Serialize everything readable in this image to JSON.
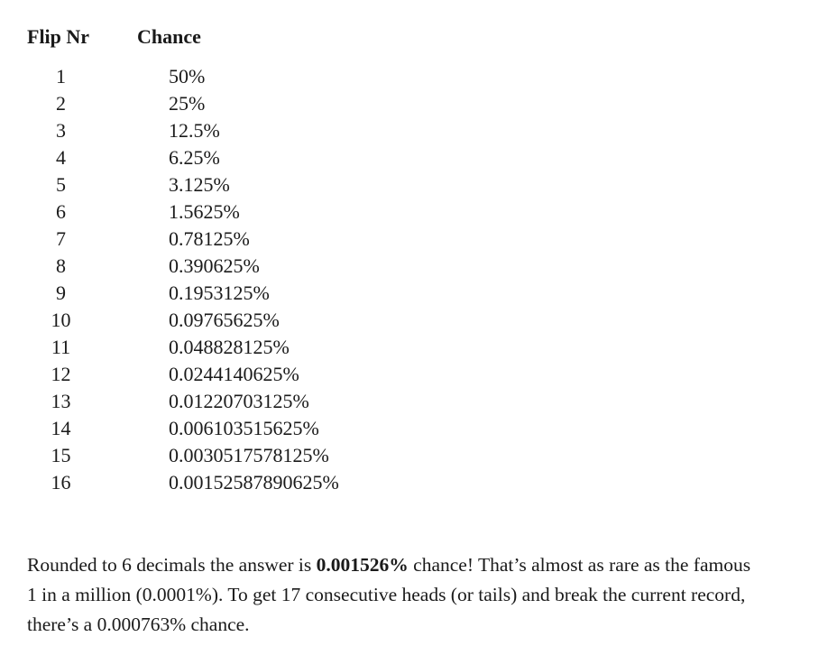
{
  "colors": {
    "text": "#1a1a1a",
    "background": "#ffffff"
  },
  "table": {
    "headers": {
      "flip": "Flip Nr",
      "chance": "Chance"
    },
    "rows": [
      {
        "flip": "1",
        "chance": "50%"
      },
      {
        "flip": "2",
        "chance": "25%"
      },
      {
        "flip": "3",
        "chance": "12.5%"
      },
      {
        "flip": "4",
        "chance": "6.25%"
      },
      {
        "flip": "5",
        "chance": "3.125%"
      },
      {
        "flip": "6",
        "chance": "1.5625%"
      },
      {
        "flip": "7",
        "chance": "0.78125%"
      },
      {
        "flip": "8",
        "chance": "0.390625%"
      },
      {
        "flip": "9",
        "chance": "0.1953125%"
      },
      {
        "flip": "10",
        "chance": "0.09765625%"
      },
      {
        "flip": "11",
        "chance": "0.048828125%"
      },
      {
        "flip": "12",
        "chance": "0.0244140625%"
      },
      {
        "flip": "13",
        "chance": "0.01220703125%"
      },
      {
        "flip": "14",
        "chance": "0.006103515625%"
      },
      {
        "flip": "15",
        "chance": "0.0030517578125%"
      },
      {
        "flip": "16",
        "chance": "0.00152587890625%"
      }
    ]
  },
  "paragraph": {
    "line1_prefix": "Rounded to 6 decimals the answer is ",
    "line1_bold": "0.001526%",
    "line1_suffix": " chance! That’s almost as rare as the famous",
    "line2": "1 in a million (0.0001%). To get 17 consecutive heads (or tails) and break the current record,",
    "line3": "there’s a 0.000763% chance."
  }
}
